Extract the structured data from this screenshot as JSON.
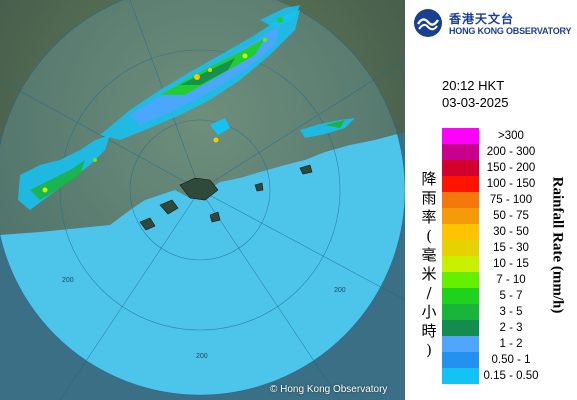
{
  "header": {
    "logo_zh": "香港天文台",
    "logo_en": "HONG KONG OBSERVATORY"
  },
  "timestamp": {
    "time": "20:12 HKT",
    "date": "03-03-2025"
  },
  "legend": {
    "title_zh": "降雨率(毫米/小時)",
    "title_en": "Rainfall Rate (mm/h)",
    "levels": [
      {
        "label": ">300",
        "color": "#ff00ff"
      },
      {
        "label": "200 - 300",
        "color": "#c8008c"
      },
      {
        "label": "150 - 200",
        "color": "#d2002d"
      },
      {
        "label": "100 - 150",
        "color": "#ff1400"
      },
      {
        "label": "75 - 100",
        "color": "#f5780a"
      },
      {
        "label": "50 - 75",
        "color": "#f59b0a"
      },
      {
        "label": "30 - 50",
        "color": "#ffc300"
      },
      {
        "label": "15 - 30",
        "color": "#e6d200"
      },
      {
        "label": "10 - 15",
        "color": "#c8f000"
      },
      {
        "label": "7 - 10",
        "color": "#64f000"
      },
      {
        "label": "5 - 7",
        "color": "#1ed21e"
      },
      {
        "label": "3 - 5",
        "color": "#19b43c"
      },
      {
        "label": "2 - 3",
        "color": "#148c50"
      },
      {
        "label": "1 - 2",
        "color": "#50a5ff"
      },
      {
        "label": "0.50 - 1",
        "color": "#2391f0"
      },
      {
        "label": "0.15 - 0.50",
        "color": "#14c3f5"
      }
    ]
  },
  "map": {
    "range_labels": [
      "200",
      "200",
      "200"
    ],
    "copyright": "© Hong Kong Observatory",
    "land_color": "#4f6a55",
    "sea_color": "#3cb8e0"
  }
}
